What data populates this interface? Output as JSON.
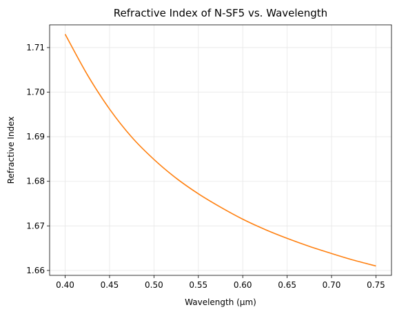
{
  "chart_data": {
    "type": "line",
    "title": "Refractive Index of N-SF5 vs. Wavelength",
    "xlabel": "Wavelength (µm)",
    "ylabel": "Refractive Index",
    "xlim": [
      0.3825,
      0.7675
    ],
    "ylim": [
      1.6589,
      1.7151
    ],
    "xticks": [
      0.4,
      0.45,
      0.5,
      0.55,
      0.6,
      0.65,
      0.7,
      0.75
    ],
    "xtick_labels": [
      "0.40",
      "0.45",
      "0.50",
      "0.55",
      "0.60",
      "0.65",
      "0.70",
      "0.75"
    ],
    "yticks": [
      1.66,
      1.67,
      1.68,
      1.69,
      1.7,
      1.71
    ],
    "ytick_labels": [
      "1.66",
      "1.67",
      "1.68",
      "1.69",
      "1.70",
      "1.71"
    ],
    "grid": true,
    "line_color": "#ff7f0e",
    "series": [
      {
        "x": [
          0.4,
          0.425,
          0.45,
          0.475,
          0.5,
          0.525,
          0.55,
          0.575,
          0.6,
          0.625,
          0.65,
          0.675,
          0.7,
          0.725,
          0.75
        ],
        "y": [
          1.713,
          1.7039,
          1.6962,
          1.6899,
          1.6849,
          1.6807,
          1.6772,
          1.6742,
          1.6715,
          1.6692,
          1.6672,
          1.6654,
          1.6638,
          1.6623,
          1.661
        ]
      }
    ]
  }
}
